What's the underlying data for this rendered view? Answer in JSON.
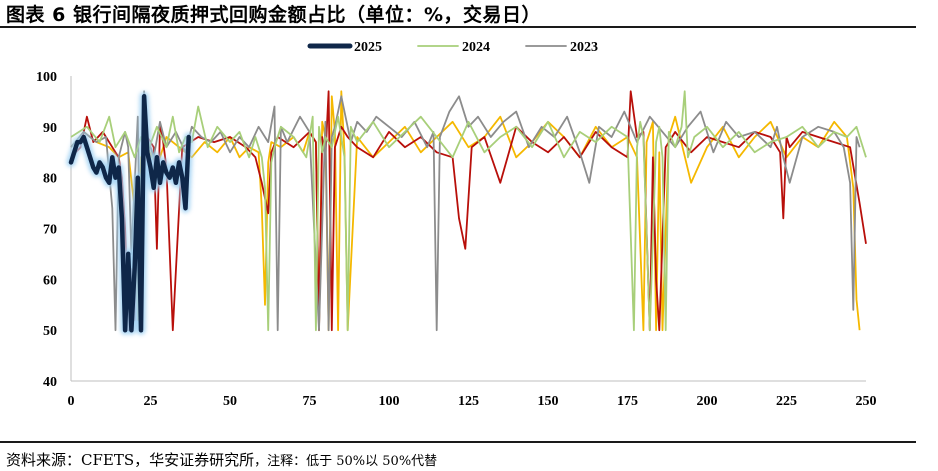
{
  "title": "图表 6  银行间隔夜质押式回购金额占比（单位：%，交易日）",
  "source": {
    "label": "资料来源：CFETS，华安证券研究所",
    "note": "，注释：低于 50%以 50%代替"
  },
  "colors": {
    "s2025": "#0f2749",
    "s2025_glow": "#9fd0f3",
    "s2024": "#a8cf7a",
    "s2023": "#8c8c8c",
    "gold": "#f5b800",
    "red": "#b80f0a"
  },
  "chart_data": {
    "type": "line",
    "title": "",
    "xlabel": "",
    "ylabel": "",
    "xlim": [
      0,
      250
    ],
    "ylim": [
      40,
      100
    ],
    "xticks": [
      0,
      25,
      50,
      75,
      100,
      125,
      150,
      175,
      200,
      225,
      250
    ],
    "yticks": [
      40,
      50,
      60,
      70,
      80,
      90,
      100
    ],
    "legend_position": "top-center",
    "grid": false,
    "series": [
      {
        "name": "2025",
        "color": "#0f2749",
        "highlight": true,
        "x": [
          0,
          1,
          2,
          3,
          4,
          5,
          6,
          7,
          8,
          9,
          10,
          11,
          12,
          13,
          14,
          15,
          16,
          17,
          18,
          19,
          20,
          21,
          22,
          23,
          24,
          25,
          26,
          27,
          28,
          29,
          30,
          31,
          32,
          33,
          34,
          35,
          36,
          37
        ],
        "y": [
          83,
          85,
          87,
          87,
          88,
          86,
          84,
          82,
          81,
          83,
          82,
          80,
          79,
          84,
          80,
          82,
          72,
          50,
          65,
          50,
          62,
          80,
          50,
          96,
          85,
          82,
          78,
          84,
          79,
          83,
          81,
          80,
          82,
          79,
          83,
          80,
          74,
          88
        ]
      },
      {
        "name": "2024",
        "color": "#a8cf7a",
        "x": [
          0,
          5,
          9,
          12,
          14,
          17,
          20,
          22,
          24,
          27,
          30,
          32,
          34,
          36,
          38,
          40,
          43,
          46,
          50,
          53,
          56,
          58,
          60,
          61,
          62,
          63,
          64,
          66,
          70,
          74,
          76,
          77,
          78,
          79,
          80,
          82,
          84,
          86,
          87,
          88,
          90,
          95,
          100,
          105,
          110,
          115,
          120,
          125,
          130,
          135,
          140,
          145,
          150,
          155,
          160,
          165,
          170,
          175,
          177,
          178,
          179,
          180,
          182,
          184,
          185,
          186,
          187,
          188,
          190,
          192,
          193,
          194,
          196,
          200,
          205,
          210,
          215,
          220,
          225,
          230,
          235,
          240,
          244,
          247,
          250
        ],
        "y": [
          88,
          90,
          87,
          92,
          86,
          89,
          84,
          88,
          85,
          90,
          86,
          92,
          85,
          88,
          87,
          94,
          86,
          90,
          87,
          89,
          84,
          88,
          84,
          78,
          50,
          83,
          86,
          90,
          88,
          84,
          92,
          50,
          90,
          85,
          88,
          86,
          92,
          84,
          50,
          90,
          87,
          91,
          86,
          89,
          92,
          88,
          84,
          91,
          85,
          88,
          90,
          86,
          91,
          84,
          89,
          87,
          90,
          88,
          50,
          86,
          91,
          88,
          50,
          87,
          90,
          84,
          50,
          89,
          86,
          90,
          97,
          84,
          88,
          90,
          86,
          89,
          85,
          87,
          88,
          90,
          86,
          89,
          88,
          90,
          84
        ]
      },
      {
        "name": "2023",
        "color": "#8c8c8c",
        "x": [
          0,
          4,
          8,
          11,
          13,
          14,
          15,
          17,
          18,
          19,
          21,
          22,
          23,
          24,
          26,
          28,
          30,
          33,
          36,
          38,
          41,
          44,
          47,
          50,
          53,
          56,
          59,
          62,
          64,
          65,
          66,
          68,
          72,
          75,
          78,
          80,
          81,
          82,
          83,
          85,
          88,
          90,
          93,
          96,
          100,
          104,
          108,
          112,
          114,
          115,
          116,
          119,
          122,
          125,
          128,
          132,
          136,
          140,
          144,
          148,
          152,
          156,
          160,
          163,
          166,
          170,
          174,
          178,
          182,
          186,
          190,
          194,
          198,
          202,
          206,
          210,
          215,
          220,
          222,
          224,
          226,
          230,
          235,
          240,
          243,
          245,
          246,
          247,
          248
        ],
        "y": [
          86,
          89,
          87,
          88,
          74,
          50,
          84,
          89,
          86,
          65,
          92,
          52,
          97,
          88,
          84,
          91,
          86,
          89,
          85,
          90,
          88,
          87,
          89,
          85,
          88,
          86,
          90,
          87,
          94,
          50,
          90,
          87,
          92,
          89,
          50,
          91,
          50,
          88,
          90,
          96,
          87,
          91,
          89,
          92,
          90,
          88,
          91,
          86,
          89,
          50,
          88,
          93,
          96,
          90,
          92,
          88,
          91,
          93,
          86,
          90,
          88,
          92,
          85,
          79,
          90,
          88,
          93,
          87,
          92,
          89,
          86,
          90,
          93,
          85,
          91,
          88,
          89,
          86,
          90,
          84,
          79,
          88,
          90,
          89,
          86,
          79,
          54,
          88,
          86
        ]
      },
      {
        "name": "",
        "color": "#f5b800",
        "x": [
          0,
          4,
          8,
          12,
          15,
          18,
          20,
          21,
          22,
          24,
          27,
          30,
          34,
          38,
          42,
          46,
          50,
          53,
          56,
          59,
          60,
          61,
          62,
          63,
          66,
          70,
          73,
          75,
          77,
          78,
          79,
          80,
          81,
          82,
          83,
          84,
          85,
          86,
          87,
          90,
          95,
          100,
          105,
          110,
          115,
          120,
          125,
          130,
          135,
          140,
          145,
          150,
          155,
          160,
          165,
          170,
          175,
          178,
          180,
          181,
          182,
          183,
          184,
          185,
          186,
          188,
          190,
          195,
          200,
          205,
          210,
          215,
          220,
          225,
          230,
          235,
          240,
          244,
          246,
          247,
          248
        ],
        "y": [
          86,
          89,
          87,
          86,
          84,
          85,
          74,
          52,
          84,
          86,
          82,
          88,
          86,
          84,
          87,
          85,
          88,
          84,
          86,
          85,
          74,
          55,
          83,
          87,
          86,
          88,
          85,
          89,
          87,
          50,
          91,
          88,
          50,
          96,
          89,
          50,
          97,
          85,
          50,
          88,
          84,
          87,
          90,
          85,
          88,
          91,
          86,
          88,
          92,
          84,
          87,
          91,
          88,
          84,
          90,
          86,
          88,
          84,
          50,
          87,
          89,
          91,
          50,
          85,
          50,
          88,
          92,
          79,
          86,
          90,
          84,
          88,
          91,
          84,
          88,
          86,
          91,
          88,
          78,
          56,
          50
        ]
      },
      {
        "name": "",
        "color": "#b80f0a",
        "x": [
          0,
          3,
          5,
          7,
          10,
          13,
          15,
          16,
          17,
          18,
          19,
          20,
          21,
          22,
          23,
          24,
          26,
          27,
          28,
          29,
          30,
          32,
          35,
          40,
          45,
          50,
          55,
          58,
          60,
          62,
          63,
          65,
          70,
          75,
          77,
          78,
          79,
          80,
          81,
          82,
          83,
          85,
          87,
          90,
          95,
          100,
          105,
          110,
          115,
          120,
          122,
          124,
          126,
          130,
          135,
          140,
          145,
          150,
          155,
          160,
          165,
          170,
          175,
          176,
          178,
          180,
          182,
          183,
          184,
          185,
          187,
          190,
          195,
          200,
          205,
          210,
          215,
          220,
          223,
          224,
          225,
          226,
          230,
          235,
          240,
          245,
          248,
          250
        ],
        "y": [
          84,
          86,
          92,
          87,
          89,
          86,
          84,
          80,
          70,
          50,
          62,
          52,
          76,
          54,
          80,
          88,
          86,
          66,
          90,
          87,
          82,
          50,
          86,
          88,
          87,
          88,
          86,
          84,
          79,
          73,
          85,
          88,
          86,
          89,
          87,
          50,
          88,
          84,
          97,
          50,
          86,
          90,
          88,
          86,
          84,
          89,
          86,
          88,
          85,
          84,
          72,
          66,
          86,
          88,
          79,
          90,
          87,
          85,
          88,
          84,
          89,
          86,
          84,
          97,
          88,
          89,
          50,
          84,
          60,
          50,
          86,
          89,
          85,
          88,
          87,
          86,
          89,
          88,
          85,
          72,
          88,
          86,
          89,
          88,
          87,
          86,
          75,
          67
        ]
      }
    ]
  }
}
